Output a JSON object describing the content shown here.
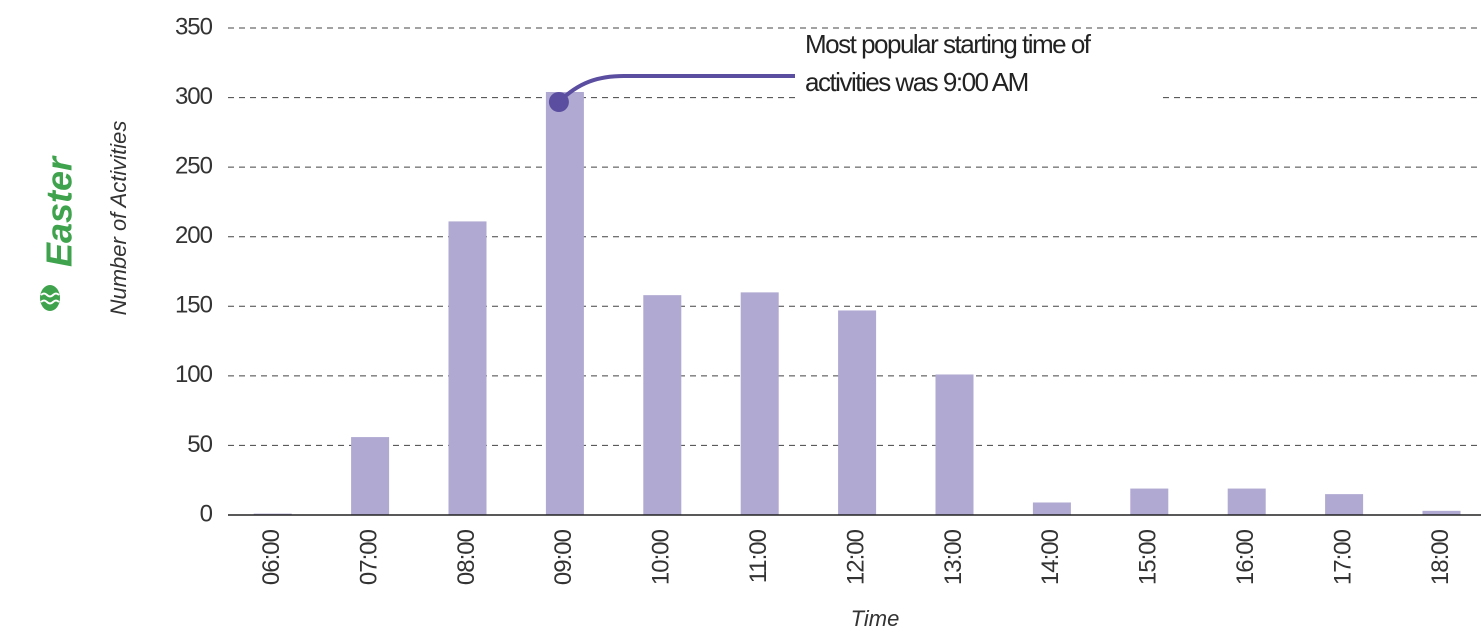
{
  "chart_data": {
    "type": "bar",
    "side_label": "Easter",
    "y_label": "Number of Activities",
    "x_label": "Time",
    "annotation": [
      "Most popular starting time of",
      "activities was 9:00 AM"
    ],
    "categories": [
      "06:00",
      "07:00",
      "08:00",
      "09:00",
      "10:00",
      "11:00",
      "12:00",
      "13:00",
      "14:00",
      "15:00",
      "16:00",
      "17:00",
      "18:00"
    ],
    "values": [
      1,
      56,
      211,
      304,
      158,
      160,
      147,
      101,
      9,
      19,
      19,
      15,
      3
    ],
    "color": "#b0a9d2",
    "ylim": [
      0,
      350
    ],
    "yticks": [
      0,
      50,
      100,
      150,
      200,
      250,
      300,
      350
    ],
    "grid": true
  }
}
